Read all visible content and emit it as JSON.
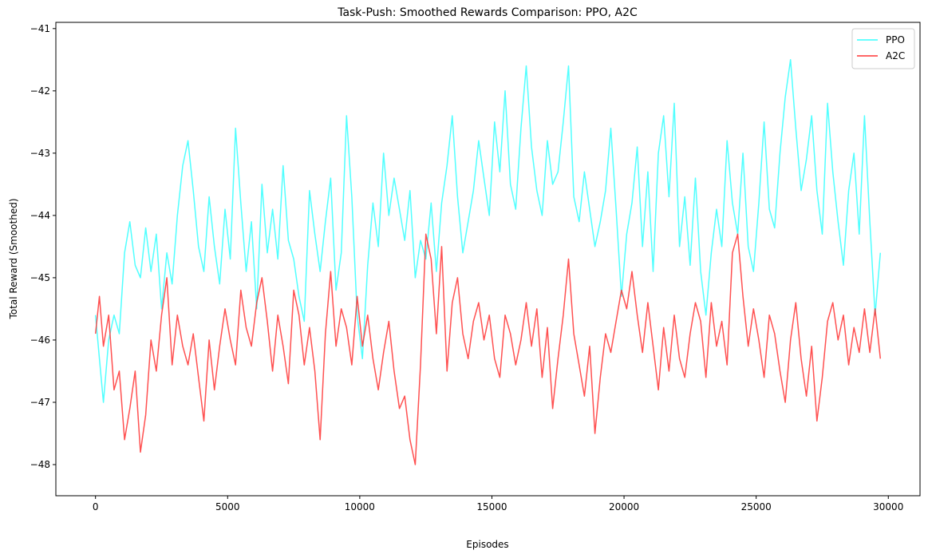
{
  "chart_data": {
    "type": "line",
    "title": "Task-Push: Smoothed Rewards Comparison: PPO, A2C",
    "xlabel": "Episodes",
    "ylabel": "Total Reward (Smoothed)",
    "xlim": [
      -1500,
      31200
    ],
    "ylim": [
      -48.5,
      -40.9
    ],
    "xticks": [
      0,
      5000,
      10000,
      15000,
      20000,
      25000,
      30000
    ],
    "yticks": [
      -48,
      -47,
      -46,
      -45,
      -44,
      -43,
      -42,
      -41
    ],
    "grid": false,
    "legend_position": "upper right",
    "series": [
      {
        "name": "PPO",
        "color": "#33ffff",
        "x": [
          0,
          150,
          300,
          500,
          700,
          900,
          1100,
          1300,
          1500,
          1700,
          1900,
          2100,
          2300,
          2500,
          2700,
          2900,
          3100,
          3300,
          3500,
          3700,
          3900,
          4100,
          4300,
          4500,
          4700,
          4900,
          5100,
          5300,
          5500,
          5700,
          5900,
          6100,
          6300,
          6500,
          6700,
          6900,
          7100,
          7300,
          7500,
          7700,
          7900,
          8100,
          8300,
          8500,
          8700,
          8900,
          9100,
          9300,
          9500,
          9700,
          9900,
          10100,
          10300,
          10500,
          10700,
          10900,
          11100,
          11300,
          11500,
          11700,
          11900,
          12100,
          12300,
          12500,
          12700,
          12900,
          13100,
          13300,
          13500,
          13700,
          13900,
          14100,
          14300,
          14500,
          14700,
          14900,
          15100,
          15300,
          15500,
          15700,
          15900,
          16100,
          16300,
          16500,
          16700,
          16900,
          17100,
          17300,
          17500,
          17700,
          17900,
          18100,
          18300,
          18500,
          18700,
          18900,
          19100,
          19300,
          19500,
          19700,
          19900,
          20100,
          20300,
          20500,
          20700,
          20900,
          21100,
          21300,
          21500,
          21700,
          21900,
          22100,
          22300,
          22500,
          22700,
          22900,
          23100,
          23300,
          23500,
          23700,
          23900,
          24100,
          24300,
          24500,
          24700,
          24900,
          25100,
          25300,
          25500,
          25700,
          25900,
          26100,
          26300,
          26500,
          26700,
          26900,
          27100,
          27300,
          27500,
          27700,
          27900,
          28100,
          28300,
          28500,
          28700,
          28900,
          29100,
          29300,
          29500,
          29700
        ],
        "y": [
          -45.6,
          -46.3,
          -47.0,
          -46.0,
          -45.6,
          -45.9,
          -44.6,
          -44.1,
          -44.8,
          -45.0,
          -44.2,
          -44.9,
          -44.3,
          -45.5,
          -44.6,
          -45.1,
          -44.0,
          -43.2,
          -42.8,
          -43.6,
          -44.5,
          -44.9,
          -43.7,
          -44.5,
          -45.1,
          -43.9,
          -44.7,
          -42.6,
          -43.8,
          -44.9,
          -44.1,
          -45.5,
          -43.5,
          -44.6,
          -43.9,
          -44.7,
          -43.2,
          -44.4,
          -44.7,
          -45.3,
          -45.7,
          -43.6,
          -44.3,
          -44.9,
          -44.1,
          -43.4,
          -45.2,
          -44.6,
          -42.4,
          -43.7,
          -45.6,
          -46.3,
          -44.8,
          -43.8,
          -44.5,
          -43.0,
          -44.0,
          -43.4,
          -43.9,
          -44.4,
          -43.6,
          -45.0,
          -44.4,
          -44.7,
          -43.8,
          -44.9,
          -43.8,
          -43.2,
          -42.4,
          -43.7,
          -44.6,
          -44.1,
          -43.6,
          -42.8,
          -43.4,
          -44.0,
          -42.5,
          -43.3,
          -42.0,
          -43.5,
          -43.9,
          -42.6,
          -41.6,
          -42.9,
          -43.6,
          -44.0,
          -42.8,
          -43.5,
          -43.3,
          -42.5,
          -41.6,
          -43.7,
          -44.1,
          -43.3,
          -43.9,
          -44.5,
          -44.1,
          -43.6,
          -42.6,
          -43.9,
          -45.3,
          -44.3,
          -43.8,
          -42.9,
          -44.5,
          -43.3,
          -44.9,
          -43.0,
          -42.4,
          -43.7,
          -42.2,
          -44.5,
          -43.7,
          -44.8,
          -43.4,
          -44.9,
          -45.6,
          -44.6,
          -43.9,
          -44.5,
          -42.8,
          -43.8,
          -44.3,
          -43.0,
          -44.5,
          -44.9,
          -43.8,
          -42.5,
          -43.9,
          -44.2,
          -43.0,
          -42.1,
          -41.5,
          -42.6,
          -43.6,
          -43.1,
          -42.4,
          -43.6,
          -44.3,
          -42.2,
          -43.3,
          -44.1,
          -44.8,
          -43.6,
          -43.0,
          -44.3,
          -42.4,
          -44.1,
          -45.6,
          -44.6
        ]
      },
      {
        "name": "A2C",
        "color": "#ff3333",
        "x": [
          0,
          150,
          300,
          500,
          700,
          900,
          1100,
          1300,
          1500,
          1700,
          1900,
          2100,
          2300,
          2500,
          2700,
          2900,
          3100,
          3300,
          3500,
          3700,
          3900,
          4100,
          4300,
          4500,
          4700,
          4900,
          5100,
          5300,
          5500,
          5700,
          5900,
          6100,
          6300,
          6500,
          6700,
          6900,
          7100,
          7300,
          7500,
          7700,
          7900,
          8100,
          8300,
          8500,
          8700,
          8900,
          9100,
          9300,
          9500,
          9700,
          9900,
          10100,
          10300,
          10500,
          10700,
          10900,
          11100,
          11300,
          11500,
          11700,
          11900,
          12100,
          12300,
          12500,
          12700,
          12900,
          13100,
          13300,
          13500,
          13700,
          13900,
          14100,
          14300,
          14500,
          14700,
          14900,
          15100,
          15300,
          15500,
          15700,
          15900,
          16100,
          16300,
          16500,
          16700,
          16900,
          17100,
          17300,
          17500,
          17700,
          17900,
          18100,
          18300,
          18500,
          18700,
          18900,
          19100,
          19300,
          19500,
          19700,
          19900,
          20100,
          20300,
          20500,
          20700,
          20900,
          21100,
          21300,
          21500,
          21700,
          21900,
          22100,
          22300,
          22500,
          22700,
          22900,
          23100,
          23300,
          23500,
          23700,
          23900,
          24100,
          24300,
          24500,
          24700,
          24900,
          25100,
          25300,
          25500,
          25700,
          25900,
          26100,
          26300,
          26500,
          26700,
          26900,
          27100,
          27300,
          27500,
          27700,
          27900,
          28100,
          28300,
          28500,
          28700,
          28900,
          29100,
          29300,
          29500,
          29700
        ],
        "y": [
          -45.9,
          -45.3,
          -46.1,
          -45.6,
          -46.8,
          -46.5,
          -47.6,
          -47.1,
          -46.5,
          -47.8,
          -47.2,
          -46.0,
          -46.5,
          -45.6,
          -45.0,
          -46.4,
          -45.6,
          -46.1,
          -46.4,
          -45.9,
          -46.6,
          -47.3,
          -46.0,
          -46.8,
          -46.1,
          -45.5,
          -46.0,
          -46.4,
          -45.2,
          -45.8,
          -46.1,
          -45.4,
          -45.0,
          -45.7,
          -46.5,
          -45.6,
          -46.1,
          -46.7,
          -45.2,
          -45.6,
          -46.4,
          -45.8,
          -46.5,
          -47.6,
          -45.9,
          -44.9,
          -46.1,
          -45.5,
          -45.8,
          -46.4,
          -45.3,
          -46.1,
          -45.6,
          -46.3,
          -46.8,
          -46.2,
          -45.7,
          -46.5,
          -47.1,
          -46.9,
          -47.6,
          -48.0,
          -46.4,
          -44.3,
          -44.7,
          -45.9,
          -44.5,
          -46.5,
          -45.4,
          -45.0,
          -45.9,
          -46.3,
          -45.7,
          -45.4,
          -46.0,
          -45.6,
          -46.3,
          -46.6,
          -45.6,
          -45.9,
          -46.4,
          -46.0,
          -45.4,
          -46.1,
          -45.5,
          -46.6,
          -45.8,
          -47.1,
          -46.3,
          -45.6,
          -44.7,
          -45.9,
          -46.4,
          -46.9,
          -46.1,
          -47.5,
          -46.6,
          -45.9,
          -46.2,
          -45.7,
          -45.2,
          -45.5,
          -44.9,
          -45.6,
          -46.2,
          -45.4,
          -46.1,
          -46.8,
          -45.8,
          -46.5,
          -45.6,
          -46.3,
          -46.6,
          -45.9,
          -45.4,
          -45.7,
          -46.6,
          -45.4,
          -46.1,
          -45.7,
          -46.4,
          -44.6,
          -44.3,
          -45.3,
          -46.1,
          -45.5,
          -46.0,
          -46.6,
          -45.6,
          -45.9,
          -46.5,
          -47.0,
          -46.0,
          -45.4,
          -46.3,
          -46.9,
          -46.1,
          -47.3,
          -46.6,
          -45.7,
          -45.4,
          -46.0,
          -45.6,
          -46.4,
          -45.8,
          -46.2,
          -45.5,
          -46.2,
          -45.5,
          -46.3
        ]
      }
    ]
  }
}
